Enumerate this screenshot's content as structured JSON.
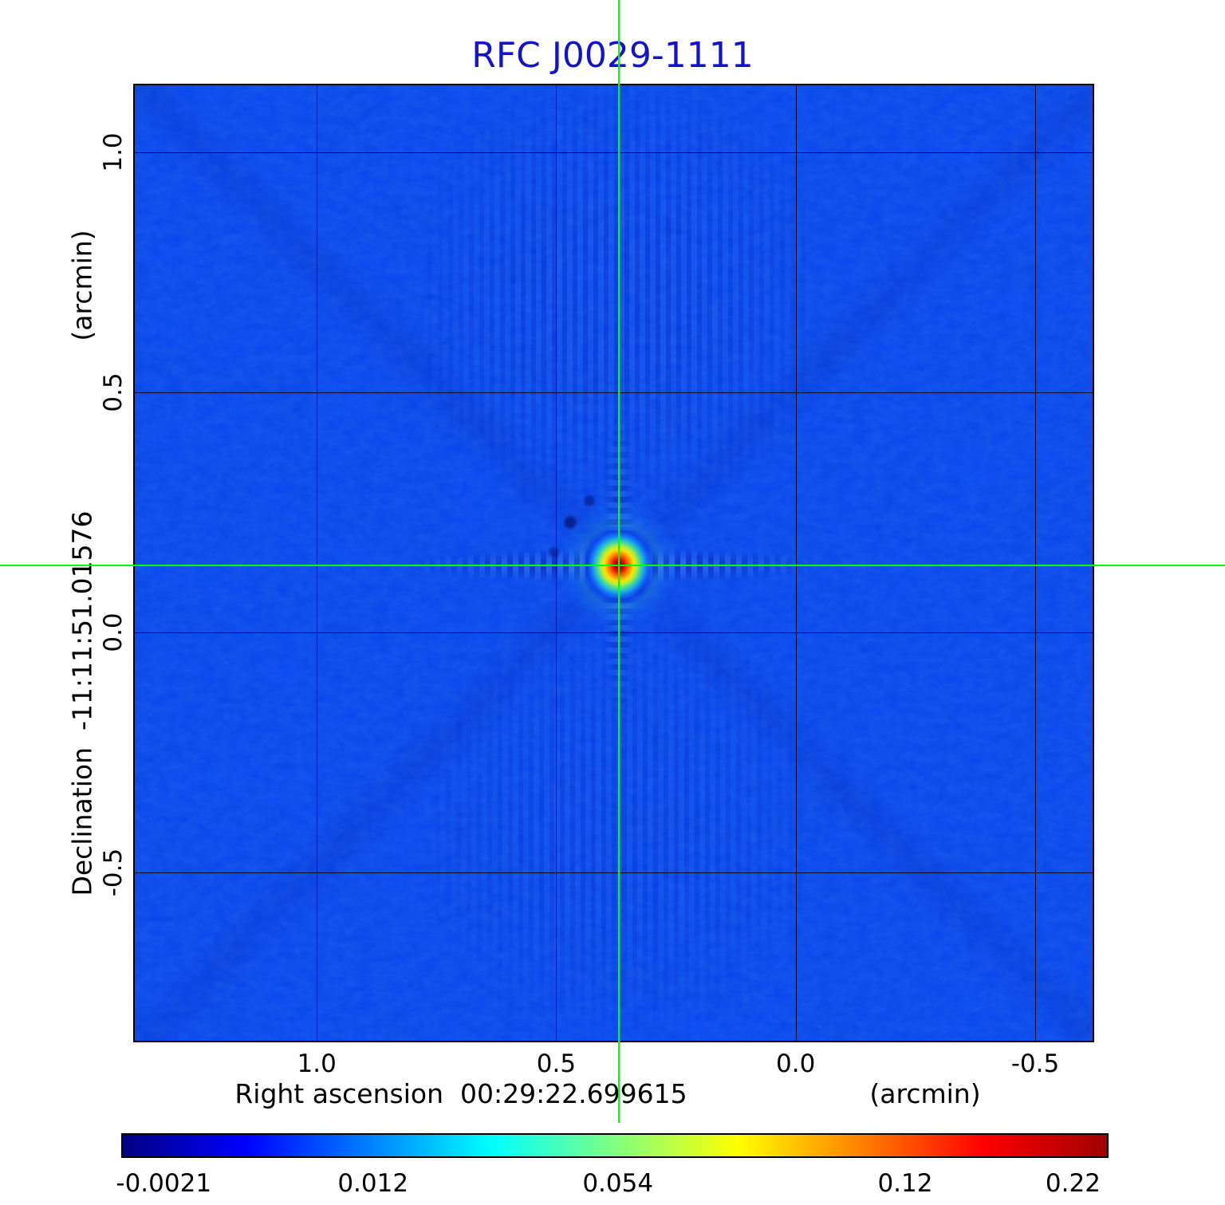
{
  "title": {
    "text": "RFC J0029-1111"
  },
  "colors": {
    "title": "#1212d0",
    "base_blue": "#0443f2",
    "crosshair": "#00ff00",
    "grid": "#000000",
    "background": "#ffffff"
  },
  "y_axis": {
    "unit_label": "(arcmin)",
    "label": "Declination  -11:11:51.01576"
  },
  "x_axis": {
    "label": "Right ascension  00:29:22.699615",
    "unit_label": "(arcmin)"
  },
  "chart_data": {
    "type": "heatmap",
    "title": "RFC J0029-1111",
    "xlabel": "Right ascension 00:29:22.699615 (arcmin)",
    "ylabel": "Declination -11:11:51.01576 (arcmin)",
    "xlim": [
      1.38,
      -0.62
    ],
    "ylim": [
      1.14,
      -0.85
    ],
    "grid": true,
    "colormap": "jet",
    "x_ticks": [
      {
        "value": 1.0,
        "label": "1.0"
      },
      {
        "value": 0.5,
        "label": "0.5"
      },
      {
        "value": 0.0,
        "label": "0.0"
      },
      {
        "value": -0.5,
        "label": "-0.5"
      }
    ],
    "y_ticks": [
      {
        "value": 1.0,
        "label": "1.0"
      },
      {
        "value": 0.5,
        "label": "0.5"
      },
      {
        "value": 0.0,
        "label": "0.0"
      },
      {
        "value": -0.5,
        "label": "-0.5"
      }
    ],
    "source": {
      "ra_offset_arcmin": 0.37,
      "dec_offset_arcmin": 0.14,
      "peak_value": 0.22,
      "description": "compact radio source at map center marked by green crosshair"
    },
    "crosshair": {
      "ra_offset_arcmin": 0.37,
      "dec_offset_arcmin": 0.14
    },
    "background_level": -0.0021,
    "colorbar": {
      "ticks": [
        {
          "label": "-0.0021",
          "position": 0.043
        },
        {
          "label": "0.012",
          "position": 0.255
        },
        {
          "label": "0.054",
          "position": 0.503
        },
        {
          "label": "0.12",
          "position": 0.794
        },
        {
          "label": "0.22",
          "position": 0.964
        }
      ],
      "gradient_stops": [
        {
          "pos": 0.0,
          "color": "#000083"
        },
        {
          "pos": 0.07,
          "color": "#0000c8"
        },
        {
          "pos": 0.125,
          "color": "#0000ff"
        },
        {
          "pos": 0.25,
          "color": "#0080ff"
        },
        {
          "pos": 0.375,
          "color": "#00ffff"
        },
        {
          "pos": 0.5,
          "color": "#80ff80"
        },
        {
          "pos": 0.625,
          "color": "#ffff00"
        },
        {
          "pos": 0.75,
          "color": "#ff8000"
        },
        {
          "pos": 0.875,
          "color": "#ff0000"
        },
        {
          "pos": 1.0,
          "color": "#a00000"
        }
      ]
    }
  }
}
